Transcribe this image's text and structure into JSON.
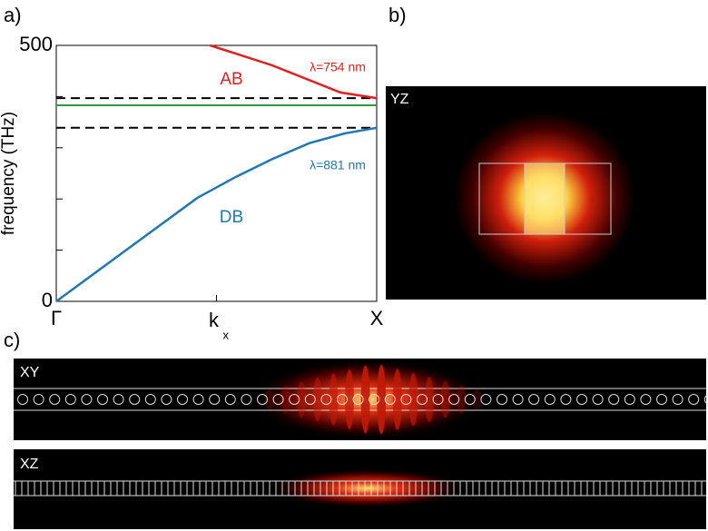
{
  "panels": {
    "a": "a)",
    "b": "b)",
    "c": "c)"
  },
  "chart_data": {
    "type": "line",
    "ylabel": "frequency (THz)",
    "xlim": [
      0,
      1
    ],
    "ylim": [
      0,
      500
    ],
    "xticks": [
      {
        "value": 0,
        "label": "Γ"
      },
      {
        "value": 1,
        "label": "X"
      }
    ],
    "xlabel": {
      "text": "k",
      "sub": "x"
    },
    "xminor": [
      0.5
    ],
    "yticks": [
      0,
      500
    ],
    "yminor": [
      100,
      200,
      300,
      400
    ],
    "series": [
      {
        "name": "DB",
        "color": "#1f77b4",
        "x": [
          0,
          0.22,
          0.44,
          0.56,
          0.674,
          0.79,
          0.9,
          1
        ],
        "values": [
          0,
          101,
          202,
          243,
          278,
          309,
          328,
          339
        ]
      },
      {
        "name": "AB",
        "color": "#e0201e",
        "x": [
          0.48,
          0.674,
          0.887,
          1
        ],
        "values": [
          500,
          461,
          408,
          397
        ]
      }
    ],
    "hlines": [
      {
        "value": 397,
        "color": "#000",
        "dash": true
      },
      {
        "value": 339,
        "color": "#000",
        "dash": true
      },
      {
        "value": 383,
        "color": "#2a9a45",
        "dash": false
      }
    ],
    "annotations": [
      {
        "text": "λ=754 nm",
        "color": "#e0201e"
      },
      {
        "text": "λ=881 nm",
        "color": "#1f77b4"
      }
    ]
  },
  "fields": {
    "yz": "YZ",
    "xy": "XY",
    "xz": "XZ"
  }
}
